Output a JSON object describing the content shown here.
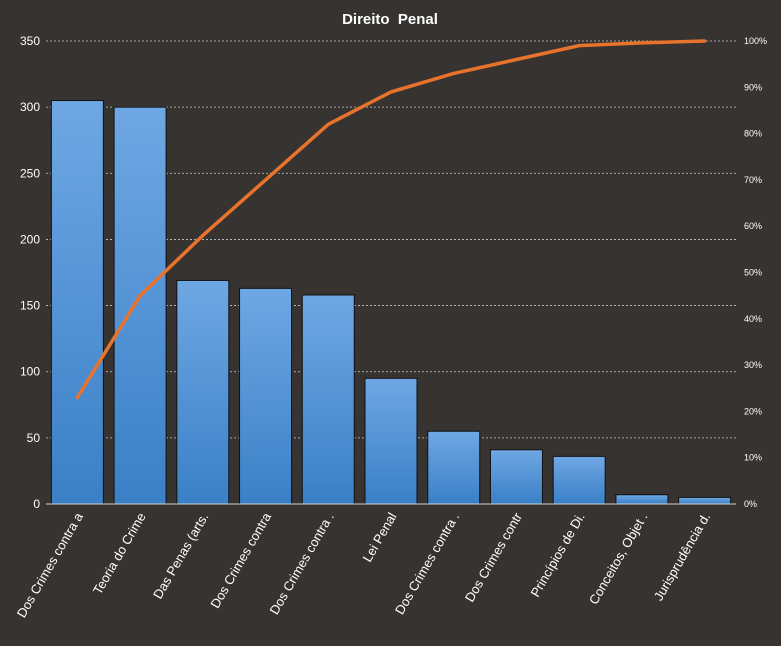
{
  "chart_data": {
    "type": "bar",
    "title": "Direito  Penal",
    "xlabel": "",
    "ylabel": "",
    "ylim": [
      0,
      350
    ],
    "yticks": [
      0,
      50,
      100,
      150,
      200,
      250,
      300,
      350
    ],
    "y2lim": [
      0,
      100
    ],
    "y2ticks": [
      "0%",
      "10%",
      "20%",
      "30%",
      "40%",
      "50%",
      "60%",
      "70%",
      "80%",
      "90%",
      "100%"
    ],
    "categories": [
      "Dos Crimes contra a",
      "Teoria do Crime",
      "Das Penas (arts.",
      "Dos Crimes contra",
      "Dos Crimes contra .",
      "Lei Penal",
      "Dos Crimes contra .",
      "Dos Crimes contr",
      "Princípios de Di.",
      "Conceitos, Objet .",
      "Jurisprudência d."
    ],
    "series": [
      {
        "type": "bar",
        "axis": "left",
        "values": [
          305,
          300,
          169,
          163,
          158,
          95,
          55,
          41,
          36,
          7,
          5
        ]
      },
      {
        "type": "line",
        "axis": "right",
        "unit": "%",
        "values": [
          23,
          45,
          58,
          70,
          82,
          89,
          93,
          96,
          99,
          99.6,
          100
        ]
      }
    ],
    "grid": true,
    "legend": "none",
    "colors": {
      "background": "#363330",
      "bar_top": "#6fa7e4",
      "bar_bottom": "#3a80c6",
      "bar_border": "#111111",
      "line": "#e8732c",
      "grid": "#c9c9c9",
      "text": "#ffffff"
    }
  }
}
